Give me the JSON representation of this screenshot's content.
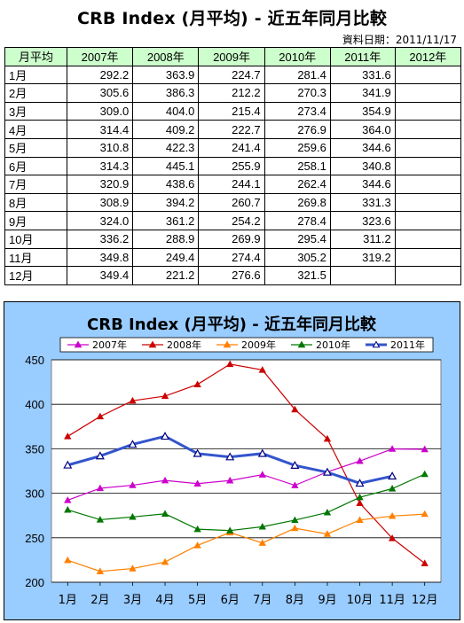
{
  "header": {
    "title": "CRB Index (月平均) - 近五年同月比較",
    "date_label": "資料日期：2011/11/17"
  },
  "table": {
    "corner": "月平均",
    "columns": [
      "2007年",
      "2008年",
      "2009年",
      "2010年",
      "2011年",
      "2012年"
    ],
    "rows": [
      {
        "month": "1月",
        "values": [
          "292.2",
          "363.9",
          "224.7",
          "281.4",
          "331.6",
          ""
        ]
      },
      {
        "month": "2月",
        "values": [
          "305.6",
          "386.3",
          "212.2",
          "270.3",
          "341.9",
          ""
        ]
      },
      {
        "month": "3月",
        "values": [
          "309.0",
          "404.0",
          "215.4",
          "273.4",
          "354.9",
          ""
        ]
      },
      {
        "month": "4月",
        "values": [
          "314.4",
          "409.2",
          "222.7",
          "276.9",
          "364.0",
          ""
        ]
      },
      {
        "month": "5月",
        "values": [
          "310.8",
          "422.3",
          "241.4",
          "259.6",
          "344.6",
          ""
        ]
      },
      {
        "month": "6月",
        "values": [
          "314.3",
          "445.1",
          "255.9",
          "258.1",
          "340.8",
          ""
        ]
      },
      {
        "month": "7月",
        "values": [
          "320.9",
          "438.6",
          "244.1",
          "262.4",
          "344.6",
          ""
        ]
      },
      {
        "month": "8月",
        "values": [
          "308.9",
          "394.2",
          "260.7",
          "269.8",
          "331.3",
          ""
        ]
      },
      {
        "month": "9月",
        "values": [
          "324.0",
          "361.2",
          "254.2",
          "278.4",
          "323.6",
          ""
        ]
      },
      {
        "month": "10月",
        "values": [
          "336.2",
          "288.9",
          "269.9",
          "295.4",
          "311.2",
          ""
        ]
      },
      {
        "month": "11月",
        "values": [
          "349.8",
          "249.4",
          "274.4",
          "305.2",
          "319.2",
          ""
        ]
      },
      {
        "month": "12月",
        "values": [
          "349.4",
          "221.2",
          "276.6",
          "321.5",
          "",
          ""
        ]
      }
    ]
  },
  "chart_data": {
    "type": "line",
    "title": "CRB Index (月平均) - 近五年同月比較",
    "categories": [
      "1月",
      "2月",
      "3月",
      "4月",
      "5月",
      "6月",
      "7月",
      "8月",
      "9月",
      "10月",
      "11月",
      "12月"
    ],
    "ylim": [
      200,
      450
    ],
    "yticks": [
      200,
      250,
      300,
      350,
      400,
      450
    ],
    "grid": true,
    "legend_position": "top",
    "series": [
      {
        "name": "2007年",
        "color": "#cc00cc",
        "marker": "triangle-filled",
        "values": [
          292.2,
          305.6,
          309.0,
          314.4,
          310.8,
          314.3,
          320.9,
          308.9,
          324.0,
          336.2,
          349.8,
          349.4
        ]
      },
      {
        "name": "2008年",
        "color": "#cc0000",
        "marker": "triangle-filled",
        "values": [
          363.9,
          386.3,
          404.0,
          409.2,
          422.3,
          445.1,
          438.6,
          394.2,
          361.2,
          288.9,
          249.4,
          221.2
        ]
      },
      {
        "name": "2009年",
        "color": "#ff8000",
        "marker": "triangle-filled",
        "values": [
          224.7,
          212.2,
          215.4,
          222.7,
          241.4,
          255.9,
          244.1,
          260.7,
          254.2,
          269.9,
          274.4,
          276.6
        ]
      },
      {
        "name": "2010年",
        "color": "#007700",
        "marker": "triangle-filled",
        "values": [
          281.4,
          270.3,
          273.4,
          276.9,
          259.6,
          258.1,
          262.4,
          269.8,
          278.4,
          295.4,
          305.2,
          321.5
        ]
      },
      {
        "name": "2011年",
        "color": "#3355cc",
        "marker": "triangle-hollow",
        "values": [
          331.6,
          341.9,
          354.9,
          364.0,
          344.6,
          340.8,
          344.6,
          331.3,
          323.6,
          311.2,
          319.2,
          null
        ]
      }
    ]
  }
}
